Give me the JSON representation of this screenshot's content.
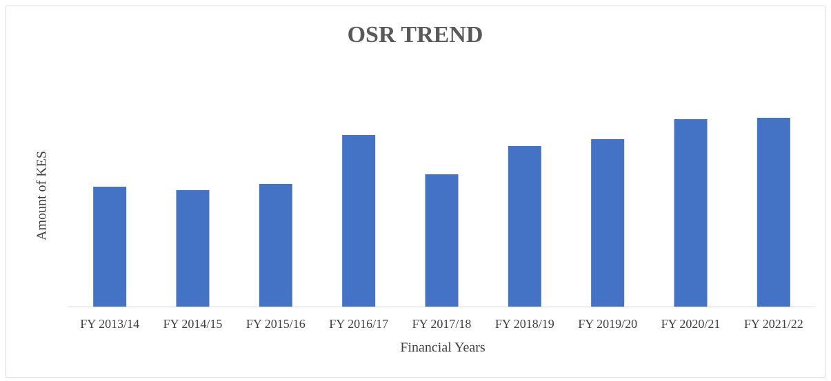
{
  "chart_data": {
    "type": "bar",
    "title": "OSR TREND",
    "x_label": "Financial Years",
    "y_label": "Amount of KES",
    "categories": [
      "FY 2013/14",
      "FY 2014/15",
      "FY 2015/16",
      "FY 2016/17",
      "FY 2017/18",
      "FY 2018/19",
      "FY 2019/20",
      "FY 2020/21",
      "FY 2021/22"
    ],
    "values": [
      174,
      169,
      178,
      249,
      192,
      233,
      243,
      272,
      274
    ],
    "color": "#4472c4",
    "ylim": [
      0,
      300
    ]
  }
}
